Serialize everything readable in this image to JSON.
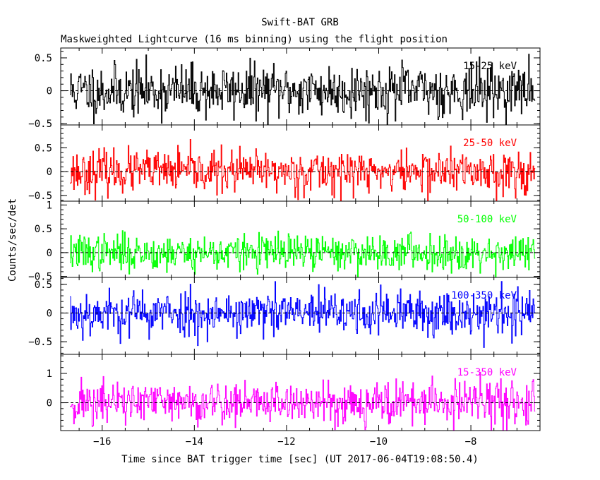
{
  "title": "Swift-BAT GRB",
  "subtitle": "Maskweighted Lightcurve (16 ms binning) using the flight position",
  "xlabel": "Time since BAT trigger time [sec] (UT 2017-06-04T19:08:50.4)",
  "ylabel": "Counts/sec/det",
  "colors": {
    "frame": "#000000",
    "background": "#ffffff"
  },
  "chart_data": [
    {
      "type": "line",
      "name": "15-25 keV",
      "color": "#000000",
      "xlim": [
        -16.9,
        -6.5
      ],
      "ylim": [
        -0.52,
        0.65
      ],
      "yticks": [
        -0.5,
        0,
        0.5
      ],
      "ytick_labels": [
        "−0.5",
        "0",
        "0.5"
      ],
      "baseline": 0,
      "noise": {
        "x_start": -16.7,
        "x_end": -6.62,
        "bin": 0.016,
        "sigma": 0.2,
        "max_abs": 0.6,
        "seed": 11
      }
    },
    {
      "type": "line",
      "name": "25-50 keV",
      "color": "#ff0000",
      "xlim": [
        -16.9,
        -6.5
      ],
      "ylim": [
        -0.62,
        0.98
      ],
      "yticks": [
        -0.5,
        0,
        0.5
      ],
      "ytick_labels": [
        "−0.5",
        "0",
        "0.5"
      ],
      "baseline": 0,
      "noise": {
        "x_start": -16.7,
        "x_end": -6.62,
        "bin": 0.016,
        "sigma": 0.22,
        "max_abs": 0.9,
        "seed": 23
      }
    },
    {
      "type": "line",
      "name": "50-100 keV",
      "color": "#00ff00",
      "xlim": [
        -16.9,
        -6.5
      ],
      "ylim": [
        -0.52,
        1.08
      ],
      "yticks": [
        -0.5,
        0,
        0.5,
        1
      ],
      "ytick_labels": [
        "−0.5",
        "0",
        "0.5",
        "1"
      ],
      "baseline": 0,
      "noise": {
        "x_start": -16.7,
        "x_end": -6.62,
        "bin": 0.016,
        "sigma": 0.19,
        "max_abs": 0.95,
        "seed": 37
      }
    },
    {
      "type": "line",
      "name": "100-350 keV",
      "color": "#0000ff",
      "xlim": [
        -16.9,
        -6.5
      ],
      "ylim": [
        -0.72,
        0.62
      ],
      "yticks": [
        -0.5,
        0,
        0.5
      ],
      "ytick_labels": [
        "−0.5",
        "0",
        "0.5"
      ],
      "baseline": 0,
      "noise": {
        "x_start": -16.7,
        "x_end": -6.62,
        "bin": 0.016,
        "sigma": 0.2,
        "max_abs": 0.65,
        "seed": 53
      }
    },
    {
      "type": "line",
      "name": "15-350 keV",
      "color": "#ff00ff",
      "xlim": [
        -16.9,
        -6.5
      ],
      "ylim": [
        -0.95,
        1.65
      ],
      "yticks": [
        0,
        1
      ],
      "ytick_labels": [
        "0",
        "1"
      ],
      "baseline": 0,
      "noise": {
        "x_start": -16.7,
        "x_end": -6.62,
        "bin": 0.016,
        "sigma": 0.38,
        "max_abs": 1.5,
        "seed": 71
      }
    }
  ],
  "xaxis": {
    "ticks": [
      -16,
      -14,
      -12,
      -10,
      -8
    ],
    "tick_labels": [
      "−16",
      "−14",
      "−12",
      "−10",
      "−8"
    ],
    "minor_step": 0.5
  }
}
